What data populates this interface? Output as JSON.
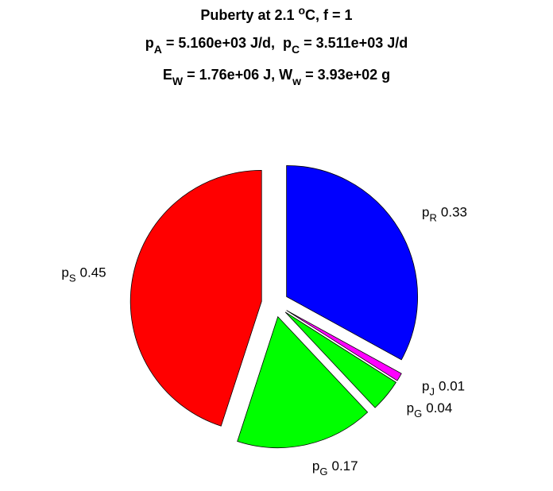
{
  "chart_data": {
    "type": "pie",
    "title": [
      [
        "Puberty at 2.1 ",
        "o",
        "C, f = 1"
      ],
      [
        "p",
        "A",
        " = 5.160e+03 J/d,  p",
        "C",
        " = 3.511e+03 J/d"
      ],
      [
        "E",
        "W",
        " = 1.76e+06 J, W",
        "w",
        " = 3.93e+02 g"
      ]
    ],
    "labels": [
      [
        "p",
        "R"
      ],
      [
        "p",
        "J"
      ],
      [
        "p",
        "G"
      ],
      [
        "p",
        "G"
      ],
      [
        "p",
        "S"
      ]
    ],
    "values": [
      0.33,
      0.01,
      0.04,
      0.17,
      0.45
    ],
    "colors": [
      "#0000ff",
      "#ff00ff",
      "#00ff00",
      "#00ff00",
      "#ff0000"
    ],
    "exploded": true
  }
}
